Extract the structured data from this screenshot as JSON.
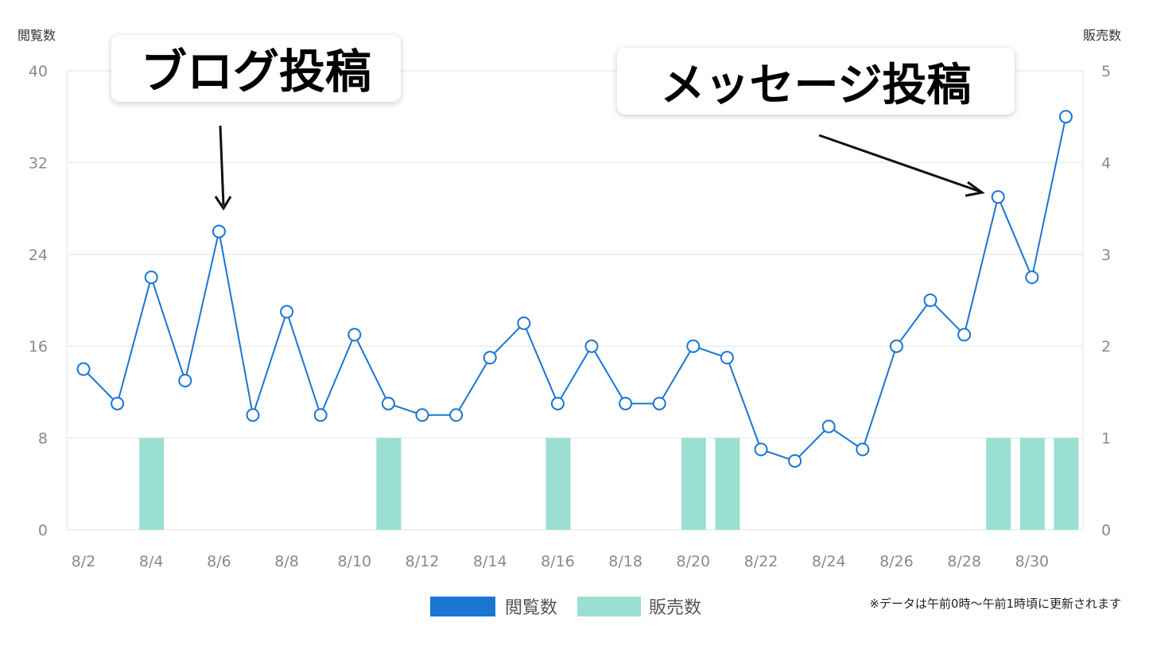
{
  "chart_data": {
    "type": "bar+line",
    "left_axis": {
      "title": "閲覧数",
      "ylim": [
        0,
        40
      ],
      "ticks": [
        "0",
        "8",
        "16",
        "24",
        "32",
        "40"
      ]
    },
    "right_axis": {
      "title": "販売数",
      "ylim": [
        0,
        5
      ],
      "ticks": [
        "0",
        "1",
        "2",
        "3",
        "4",
        "5"
      ]
    },
    "categories": [
      "8/2",
      "8/3",
      "8/4",
      "8/5",
      "8/6",
      "8/7",
      "8/8",
      "8/9",
      "8/10",
      "8/11",
      "8/12",
      "8/13",
      "8/14",
      "8/15",
      "8/16",
      "8/17",
      "8/18",
      "8/19",
      "8/20",
      "8/21",
      "8/22",
      "8/23",
      "8/24",
      "8/25",
      "8/26",
      "8/27",
      "8/28",
      "8/29",
      "8/30",
      "8/31"
    ],
    "x_tick_labels": [
      "8/2",
      "8/4",
      "8/6",
      "8/8",
      "8/10",
      "8/12",
      "8/14",
      "8/16",
      "8/18",
      "8/20",
      "8/22",
      "8/24",
      "8/26",
      "8/28",
      "8/30"
    ],
    "series": [
      {
        "name": "閲覧数",
        "type": "line",
        "axis": "left",
        "color": "#1976d2",
        "values": [
          14,
          11,
          22,
          13,
          26,
          10,
          19,
          10,
          17,
          11,
          10,
          10,
          15,
          18,
          11,
          16,
          11,
          11,
          16,
          15,
          7,
          6,
          9,
          7,
          16,
          20,
          17,
          29,
          22,
          36
        ]
      },
      {
        "name": "販売数",
        "type": "bar",
        "axis": "right",
        "color": "#9adfd1",
        "values": [
          0,
          0,
          1,
          0,
          0,
          0,
          0,
          0,
          0,
          1,
          0,
          0,
          0,
          0,
          1,
          0,
          0,
          0,
          1,
          1,
          0,
          0,
          0,
          0,
          0,
          0,
          0,
          1,
          1,
          1
        ]
      }
    ],
    "legend": {
      "placement": "bottom-center",
      "items": [
        {
          "label": "閲覧数",
          "color": "#1976d2"
        },
        {
          "label": "販売数",
          "color": "#9adfd1"
        }
      ]
    },
    "note": "※データは午前0時〜午前1時頃に更新されます",
    "annotations": [
      {
        "text": "ブログ投稿",
        "target_category": "8/6"
      },
      {
        "text": "メッセージ投稿",
        "target_category": "8/29"
      }
    ],
    "grid": true
  }
}
